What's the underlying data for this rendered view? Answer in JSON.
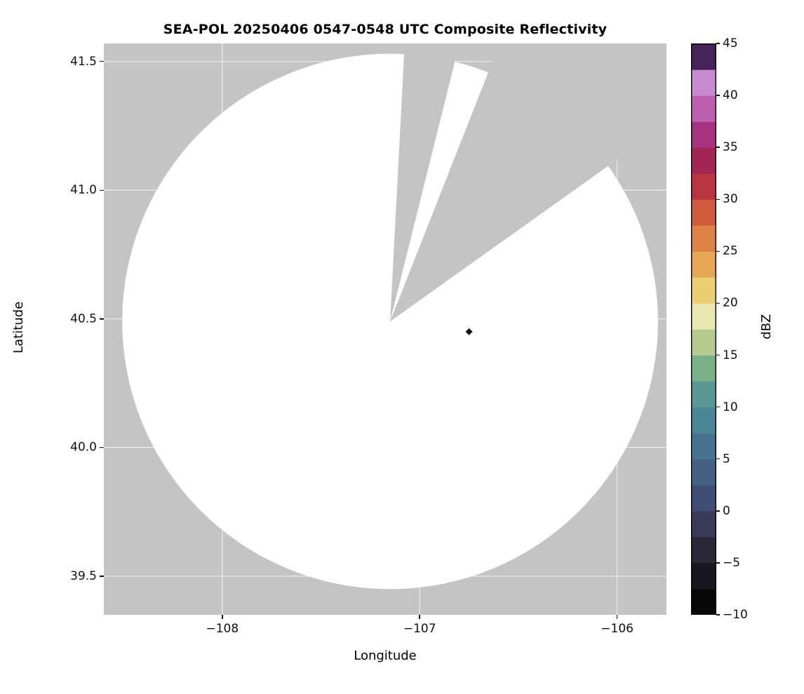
{
  "chart_data": {
    "type": "radar_composite_reflectivity_map",
    "title": "SEA-POL 20250406 0547-0548 UTC Composite Reflectivity",
    "xlabel": "Longitude",
    "ylabel": "Latitude",
    "xlim": [
      -108.6,
      -105.75
    ],
    "ylim": [
      39.35,
      41.57
    ],
    "xticks": [
      -108,
      -107,
      -106
    ],
    "xtick_labels": [
      "−108",
      "−107",
      "−106"
    ],
    "yticks": [
      41.5,
      41.0,
      40.5,
      40.0,
      39.5
    ],
    "ytick_labels": [
      "41.5",
      "41.0",
      "40.5",
      "40.0",
      "39.5"
    ],
    "grid": true,
    "radar": {
      "center_lon": -107.15,
      "center_lat": 40.49,
      "radius_deg_lat": 1.04,
      "coverage_color": "#ffffff",
      "no_data_color": "#c4c4c4",
      "missing_sectors_deg_from_north": [
        [
          3,
          14
        ],
        [
          21.5,
          54.5
        ]
      ]
    },
    "points": [
      {
        "lon": -106.75,
        "lat": 40.45,
        "value_dbz": 45,
        "marker": "diamond",
        "color": "#15101c"
      }
    ],
    "colorbar": {
      "label": "dBZ",
      "min": -10,
      "max": 45,
      "step": 2.5,
      "tick_values": [
        45,
        40,
        35,
        30,
        25,
        20,
        15,
        10,
        5,
        0,
        -5,
        -10
      ],
      "tick_labels": [
        "45",
        "40",
        "35",
        "30",
        "25",
        "20",
        "15",
        "10",
        "5",
        "0",
        "−5",
        "−10"
      ],
      "outline_color": "#000000",
      "segment_colors_bottom_to_top": [
        "#070707",
        "#18161f",
        "#2a2836",
        "#383a57",
        "#404d74",
        "#436085",
        "#45738f",
        "#4b8695",
        "#579892",
        "#79b089",
        "#b5cb90",
        "#e9e6b0",
        "#ecce73",
        "#e6a854",
        "#dd8345",
        "#d05a3c",
        "#b93641",
        "#a32553",
        "#a63280",
        "#bc5fae",
        "#c58ad0",
        "#452258"
      ]
    }
  }
}
